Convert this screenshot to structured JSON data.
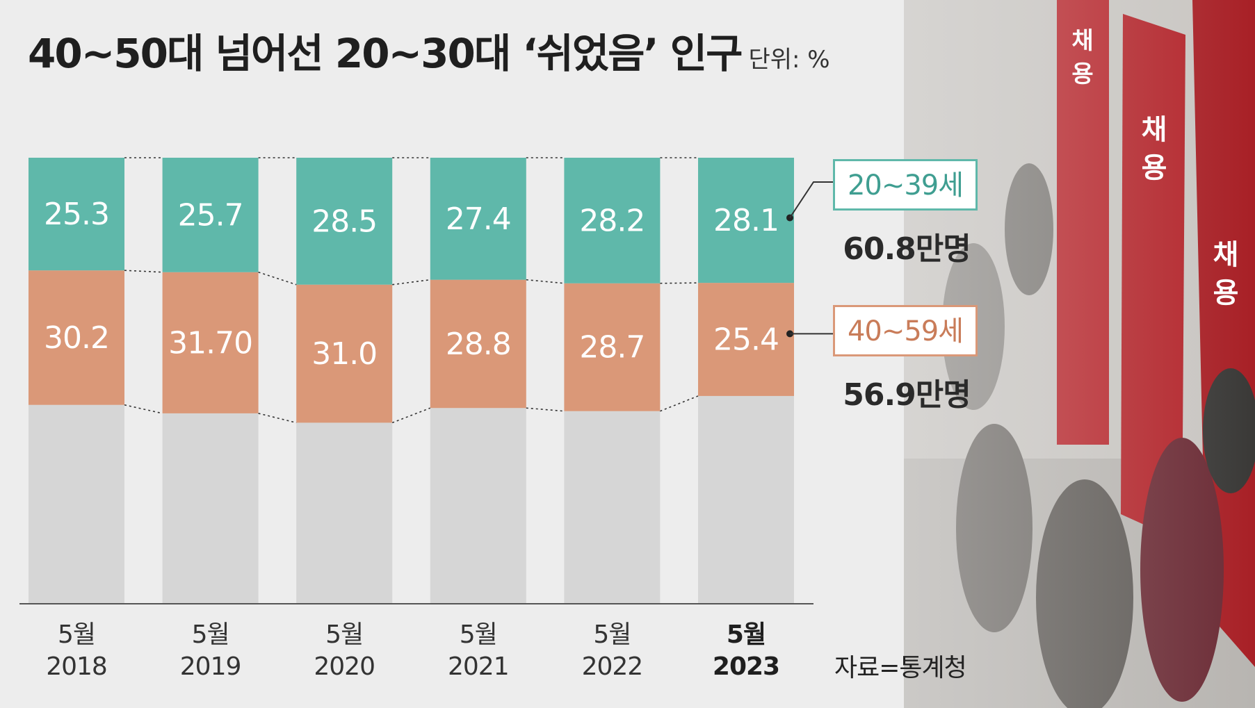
{
  "title": "40~50대 넘어선 20~30대 ‘쉬었음’ 인구",
  "unit": "단위: %",
  "source": "자료=통계청",
  "legend": {
    "young_label": "20~39세",
    "young_total": "60.8만명",
    "old_label": "40~59세",
    "old_total": "56.9만명"
  },
  "colors": {
    "young": "#5fb8aa",
    "old": "#da9878",
    "rest": "#d6d6d6",
    "background": "#ededed"
  },
  "background_photo": "job-fair-crowd-with-red-banners",
  "chart_data": {
    "type": "bar",
    "stacked": true,
    "categories": [
      "5월 2018",
      "5월 2019",
      "5월 2020",
      "5월 2021",
      "5월 2022",
      "5월 2023"
    ],
    "category_lines": [
      [
        "5월",
        "2018"
      ],
      [
        "5월",
        "2019"
      ],
      [
        "5월",
        "2020"
      ],
      [
        "5월",
        "2021"
      ],
      [
        "5월",
        "2022"
      ],
      [
        "5월",
        "2023"
      ]
    ],
    "highlight_index": 5,
    "ylim": [
      0,
      100
    ],
    "series": [
      {
        "name": "20~39세",
        "values": [
          25.3,
          25.7,
          28.5,
          27.4,
          28.2,
          28.1
        ],
        "labels": [
          "25.3",
          "25.7",
          "28.5",
          "27.4",
          "28.2",
          "28.1"
        ]
      },
      {
        "name": "40~59세",
        "values": [
          30.2,
          31.7,
          31.0,
          28.8,
          28.7,
          25.4
        ],
        "labels": [
          "30.2",
          "31.70",
          "31.0",
          "28.8",
          "28.7",
          "25.4"
        ]
      }
    ],
    "title": "40~50대 넘어선 20~30대 ‘쉬었음’ 인구",
    "xlabel": "",
    "ylabel": "",
    "grid": false,
    "legend_position": "right"
  }
}
